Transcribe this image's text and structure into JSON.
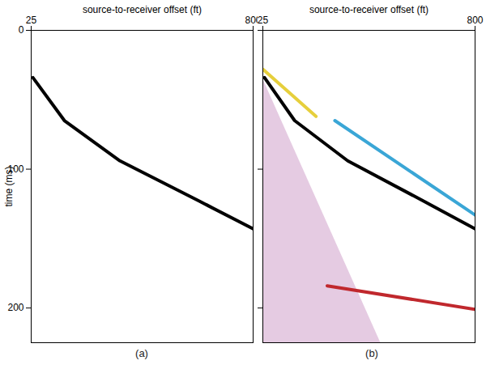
{
  "chart_data": [
    {
      "type": "line",
      "panel_label": "(a)",
      "x_label": "source-to-receiver offset (ft)",
      "y_label": "time (ms)",
      "xlim": [
        25,
        800
      ],
      "xticks": [
        25,
        800
      ],
      "ylim": [
        0,
        225
      ],
      "yticks": [
        0,
        100,
        200
      ],
      "series": [
        {
          "color": "#000000",
          "x": [
            31,
            141,
            335,
            612,
            800
          ],
          "values": [
            34,
            65,
            94,
            123,
            143
          ]
        }
      ]
    },
    {
      "type": "line",
      "panel_label": "(b)",
      "x_label": "source-to-receiver offset (ft)",
      "xlim": [
        25,
        800
      ],
      "xticks": [
        25,
        800
      ],
      "ylim": [
        0,
        225
      ],
      "yticks": [
        0,
        100,
        200
      ],
      "tick_labels": "x",
      "series": [
        {
          "type": "area",
          "color": "#d4a9cf",
          "x": [
            25,
            455
          ],
          "values": [
            35,
            225
          ],
          "base": [
            225,
            225
          ]
        },
        {
          "color": "#000000",
          "x": [
            31,
            141,
            335,
            612,
            800
          ],
          "values": [
            34,
            65,
            94,
            123,
            143
          ]
        },
        {
          "color": "#e6cf3c",
          "x": [
            25,
            219
          ],
          "values": [
            28,
            62
          ]
        },
        {
          "color": "#3aa6d6",
          "x": [
            288,
            800
          ],
          "values": [
            65,
            133
          ]
        },
        {
          "color": "#c0282d",
          "x": [
            260,
            800
          ],
          "values": [
            184,
            201
          ]
        }
      ]
    }
  ]
}
